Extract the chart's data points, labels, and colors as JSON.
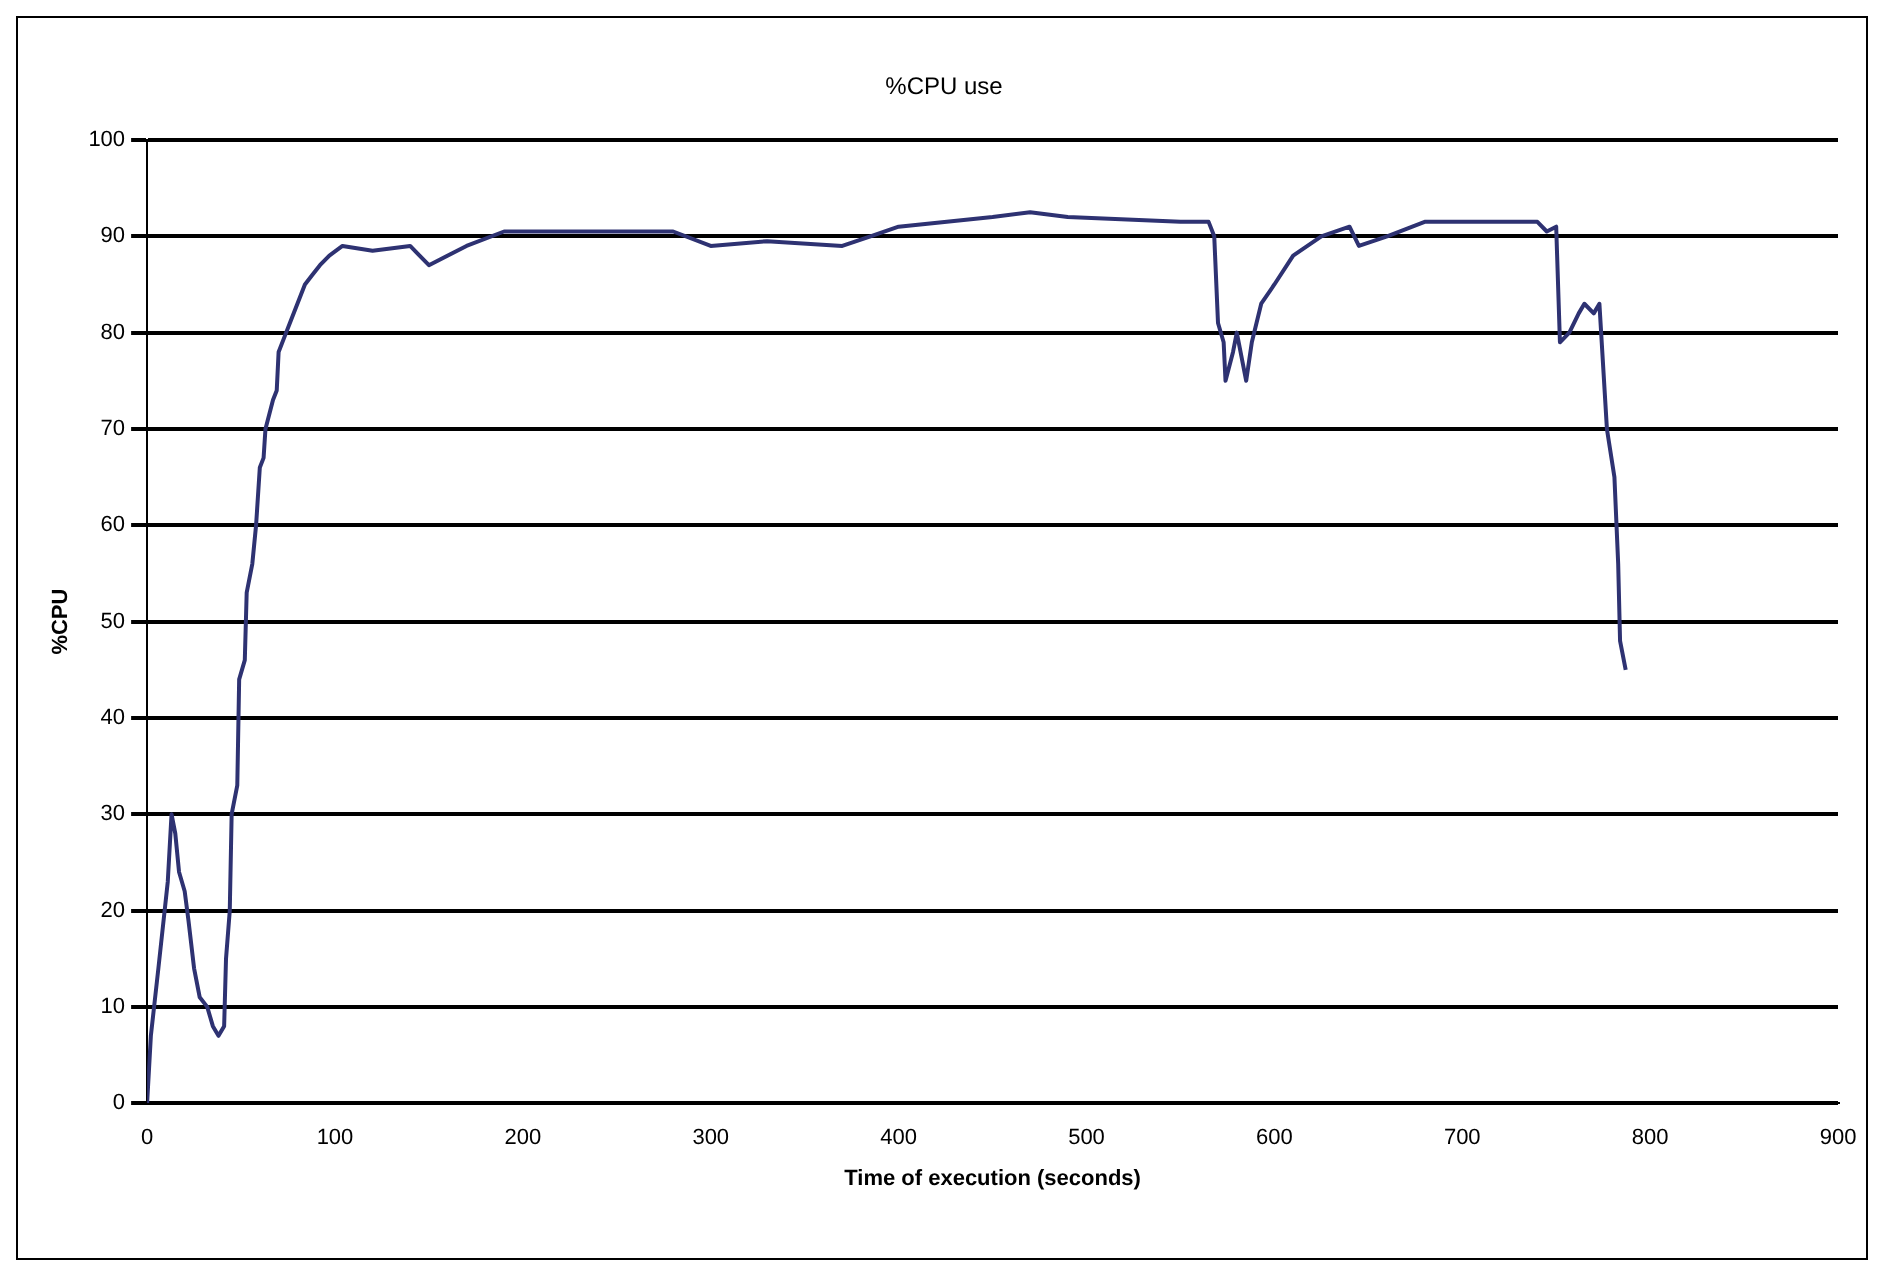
{
  "chart_data": {
    "type": "line",
    "title": "%CPU use",
    "xlabel": "Time of execution (seconds)",
    "ylabel": "%CPU",
    "x": [
      0,
      2,
      6,
      11,
      13,
      15,
      17,
      20,
      22,
      25,
      28,
      32,
      35,
      38,
      41,
      42,
      44,
      45,
      48,
      49,
      52,
      53,
      56,
      58,
      60,
      62,
      63,
      67,
      69,
      70,
      74,
      76,
      80,
      84,
      88,
      92,
      97,
      104,
      120,
      140,
      150,
      170,
      190,
      280,
      300,
      330,
      370,
      385,
      400,
      450,
      470,
      490,
      550,
      565,
      568,
      570,
      573,
      574,
      578,
      580,
      585,
      588,
      593,
      600,
      610,
      625,
      640,
      645,
      660,
      680,
      740,
      745,
      750,
      752,
      757,
      762,
      765,
      770,
      773,
      777,
      781,
      783,
      784,
      787
    ],
    "series": [
      {
        "color": "#2e3272",
        "values": [
          0,
          7,
          14,
          23,
          30,
          28,
          24,
          22,
          19,
          14,
          11,
          10,
          8,
          7,
          8,
          15,
          20,
          30,
          33,
          44,
          46,
          53,
          56,
          60,
          66,
          67,
          70,
          73,
          74,
          78,
          80,
          81,
          83,
          85,
          86,
          87,
          88,
          89,
          88.5,
          89,
          87,
          89,
          90.5,
          90.5,
          89,
          89.5,
          89,
          90,
          91,
          92,
          92.5,
          92,
          91.5,
          91.5,
          90,
          81,
          79,
          75,
          78,
          80,
          75,
          79,
          83,
          85,
          88,
          90,
          91,
          89,
          90,
          91.5,
          91.5,
          90.5,
          91,
          79,
          80,
          82,
          83,
          82,
          83,
          70,
          65,
          56,
          48,
          45
        ]
      }
    ],
    "xlim": [
      0,
      900
    ],
    "xticks": [
      0,
      100,
      200,
      300,
      400,
      500,
      600,
      700,
      800,
      900
    ],
    "ylim": [
      0,
      100
    ],
    "yticks": [
      0,
      10,
      20,
      30,
      40,
      50,
      60,
      70,
      80,
      90,
      100
    ],
    "grid": "y",
    "legend": false,
    "marker": "none",
    "line_style": "solid"
  }
}
